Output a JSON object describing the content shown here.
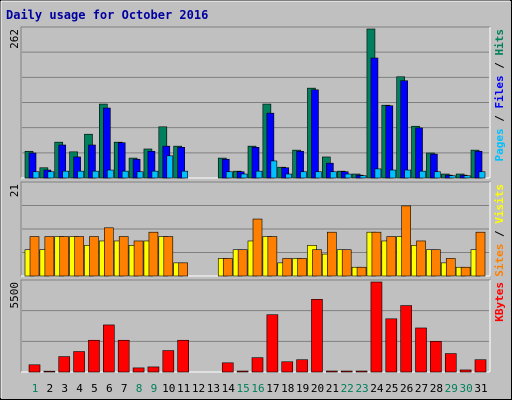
{
  "chart_data": {
    "type": "bar",
    "title": "Daily usage for October 2016",
    "categories": [
      "1",
      "2",
      "3",
      "4",
      "5",
      "6",
      "7",
      "8",
      "9",
      "10",
      "11",
      "12",
      "13",
      "14",
      "15",
      "16",
      "17",
      "18",
      "19",
      "20",
      "21",
      "22",
      "23",
      "24",
      "25",
      "26",
      "27",
      "28",
      "29",
      "30",
      "31"
    ],
    "category_colors": [
      "#00805c",
      "#000000",
      "#000000",
      "#000000",
      "#000000",
      "#000000",
      "#000000",
      "#00805c",
      "#00805c",
      "#000000",
      "#000000",
      "#000000",
      "#000000",
      "#000000",
      "#00805c",
      "#00805c",
      "#000000",
      "#000000",
      "#000000",
      "#000000",
      "#000000",
      "#00805c",
      "#00805c",
      "#000000",
      "#000000",
      "#000000",
      "#000000",
      "#000000",
      "#00805c",
      "#00805c",
      "#000000"
    ],
    "legend_separator": " / ",
    "panels": [
      {
        "ylim": [
          0,
          262
        ],
        "yticks": [
          262
        ],
        "series": [
          {
            "name": "Hits",
            "color": "#00805c",
            "values": [
              47,
              18,
              63,
              46,
              77,
              130,
              63,
              35,
              51,
              90,
              56,
              0,
              0,
              35,
              12,
              56,
              130,
              19,
              49,
              158,
              37,
              12,
              7,
              262,
              128,
              178,
              91,
              44,
              7,
              7,
              49
            ]
          },
          {
            "name": "Files",
            "color": "#0000ff",
            "values": [
              44,
              14,
              58,
              37,
              58,
              123,
              62,
              33,
              47,
              56,
              54,
              0,
              0,
              33,
              11,
              54,
              114,
              18,
              47,
              155,
              26,
              11,
              5,
              211,
              127,
              171,
              88,
              42,
              5,
              5,
              47
            ]
          },
          {
            "name": "Pages",
            "color": "#00c0ff",
            "values": [
              11,
              11,
              12,
              12,
              12,
              14,
              12,
              11,
              12,
              39,
              12,
              0,
              0,
              11,
              7,
              12,
              30,
              7,
              11,
              11,
              11,
              7,
              4,
              16,
              14,
              14,
              12,
              11,
              4,
              4,
              11
            ]
          }
        ]
      },
      {
        "ylim": [
          0,
          21
        ],
        "yticks": [
          21
        ],
        "series": [
          {
            "name": "Visits",
            "color": "#ffff00",
            "values": [
              6,
              6,
              9,
              9,
              7,
              8,
              8,
              7,
              8,
              9,
              3,
              0,
              0,
              4,
              6,
              8,
              9,
              3,
              4,
              7,
              5,
              6,
              2,
              10,
              8,
              9,
              7,
              6,
              3,
              2,
              6
            ]
          },
          {
            "name": "Sites",
            "color": "#ff8000",
            "values": [
              9,
              9,
              9,
              9,
              9,
              11,
              9,
              8,
              10,
              9,
              3,
              0,
              0,
              4,
              6,
              13,
              9,
              4,
              4,
              6,
              10,
              6,
              2,
              10,
              9,
              16,
              8,
              6,
              4,
              2,
              10
            ]
          }
        ]
      },
      {
        "ylim": [
          0,
          5500
        ],
        "yticks": [
          5500
        ],
        "series": [
          {
            "name": "KBytes",
            "color": "#ff0000",
            "values": [
              440,
              50,
              940,
              1250,
              1940,
              2875,
              1940,
              250,
              310,
              1310,
              1940,
              0,
              0,
              560,
              60,
              875,
              3500,
              625,
              750,
              4440,
              60,
              60,
              60,
              5500,
              3250,
              4060,
              2690,
              1875,
              1125,
              125,
              750
            ]
          }
        ]
      }
    ]
  }
}
